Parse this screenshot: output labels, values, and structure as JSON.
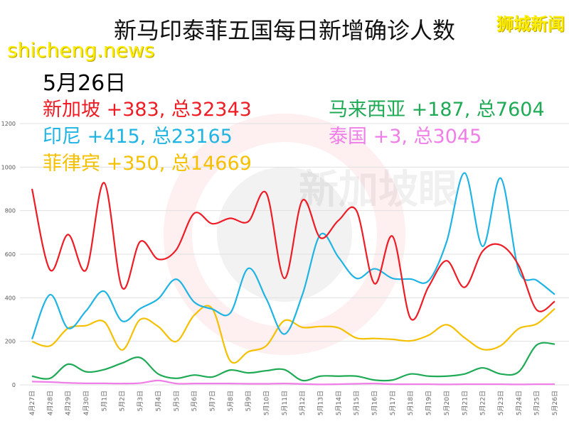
{
  "title": "新马印泰菲五国每日新增确诊人数",
  "brand": "狮城新闻",
  "site": "shicheng.news",
  "watermark": "新加坡眼",
  "chart_data": {
    "type": "line",
    "title": "新马印泰菲五国每日新增确诊人数",
    "xlabel": "",
    "ylabel": "",
    "ylim": [
      0,
      1200
    ],
    "yticks": [
      0,
      200,
      400,
      600,
      800,
      1000,
      1200
    ],
    "grid": true,
    "categories": [
      "4月27日",
      "4月28日",
      "4月29日",
      "4月30日",
      "5月1日",
      "5月2日",
      "5月3日",
      "5月4日",
      "5月5日",
      "5月6日",
      "5月7日",
      "5月8日",
      "5月9日",
      "5月10日",
      "5月11日",
      "5月12日",
      "5月13日",
      "5月14日",
      "5月15日",
      "5月16日",
      "5月17日",
      "5月18日",
      "5月19日",
      "5月20日",
      "5月21日",
      "5月22日",
      "5月23日",
      "5月24日",
      "5月25日",
      "5月26日"
    ],
    "date_label": "5月26日",
    "series": [
      {
        "name": "新加坡",
        "label": "新加坡 +383, 总32343",
        "color": "#ee1c25",
        "values": [
          900,
          528,
          690,
          528,
          928,
          446,
          658,
          577,
          620,
          788,
          740,
          765,
          750,
          880,
          489,
          847,
          675,
          755,
          800,
          465,
          682,
          305,
          451,
          570,
          448,
          614,
          642,
          548,
          344,
          383
        ]
      },
      {
        "name": "印尼",
        "label": "印尼 +415, 总23165",
        "color": "#1fb4e3",
        "values": [
          210,
          414,
          260,
          340,
          430,
          293,
          350,
          395,
          485,
          380,
          348,
          330,
          535,
          395,
          233,
          414,
          690,
          586,
          489,
          533,
          489,
          486,
          478,
          657,
          973,
          636,
          949,
          526,
          480,
          415
        ]
      },
      {
        "name": "菲律宾",
        "label": "菲律宾 +350, 总14669",
        "color": "#f5c000",
        "values": [
          199,
          179,
          260,
          272,
          290,
          160,
          300,
          268,
          199,
          320,
          350,
          110,
          152,
          180,
          295,
          264,
          268,
          262,
          215,
          213,
          209,
          202,
          228,
          276,
          216,
          163,
          180,
          258,
          280,
          350
        ]
      },
      {
        "name": "马来西亚",
        "label": "马来西亚 +187, 总7604",
        "color": "#1faa55",
        "values": [
          40,
          30,
          95,
          60,
          70,
          100,
          125,
          50,
          30,
          45,
          36,
          68,
          55,
          65,
          70,
          20,
          40,
          40,
          40,
          22,
          22,
          50,
          40,
          40,
          50,
          78,
          50,
          60,
          183,
          187
        ]
      },
      {
        "name": "泰国",
        "label": "泰国 +3, 总3045",
        "color": "#f07ee8",
        "values": [
          15,
          13,
          9,
          7,
          7,
          6,
          8,
          20,
          6,
          6,
          6,
          6,
          5,
          5,
          6,
          4,
          2,
          3,
          5,
          6,
          3,
          3,
          3,
          2,
          3,
          3,
          3,
          2,
          3,
          3
        ]
      }
    ]
  }
}
